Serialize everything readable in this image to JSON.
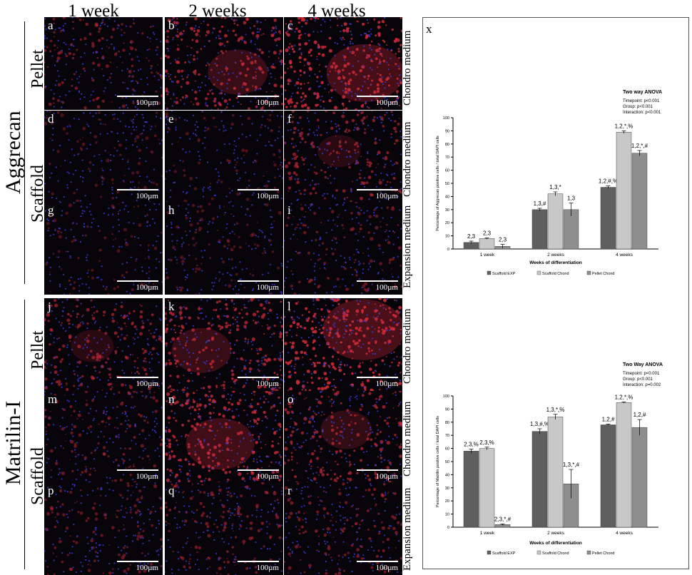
{
  "figure": {
    "column_headers": [
      "1 week",
      "2 weeks",
      "4 weeks"
    ],
    "section_labels": {
      "aggrecan": "Aggrecan",
      "matrilin": "Matrilin-I"
    },
    "row_labels": {
      "pellet_top": "Pellet",
      "scaffold_top": "Scaffold",
      "pellet_bottom": "Pellet",
      "scaffold_bottom": "Scaffold"
    },
    "medium_labels": [
      "Chondro medium",
      "Chondro medium",
      "Expansion medium",
      "Chondro medium",
      "Chondro medium",
      "Expansion medium"
    ],
    "panel_letters": [
      "a",
      "b",
      "c",
      "d",
      "e",
      "f",
      "g",
      "h",
      "i",
      "j",
      "k",
      "l",
      "m",
      "n",
      "o",
      "p",
      "q",
      "r"
    ],
    "scale_bar": "100µm",
    "chart_panel_letter": "x",
    "colors": {
      "scaffold_exp": "#5f5f5f",
      "scaffold_chond": "#c8c8c8",
      "pellet_chond": "#8e8e8e",
      "cell_red": "#d22a3a",
      "cell_blue": "#3a3ad8"
    }
  },
  "chart_data": [
    {
      "type": "bar",
      "categories": [
        "1 week",
        "2 weeks",
        "4 weeks"
      ],
      "xlabel": "Weeks of differentiation",
      "ylabel": "Percentage of Aggrecan positive cells / total DAPI cells",
      "ylim": [
        0,
        100
      ],
      "yticks": [
        0,
        10,
        20,
        30,
        40,
        50,
        60,
        70,
        80,
        90,
        100
      ],
      "series": [
        {
          "name": "Scaffold EXP",
          "values": [
            5,
            30,
            47
          ],
          "errors": [
            1,
            1,
            1
          ],
          "labels": [
            "2,3",
            "1,3,#",
            "1,2,#,%"
          ]
        },
        {
          "name": "Scaffold Chond",
          "values": [
            8,
            42,
            89
          ],
          "errors": [
            0.5,
            1.5,
            1
          ],
          "labels": [
            "2,3",
            "1,3,*",
            "1,2,*,%"
          ]
        },
        {
          "name": "Pellet Chond",
          "values": [
            2,
            30,
            73
          ],
          "errors": [
            1.5,
            5,
            2
          ],
          "labels": [
            "2,3",
            "1,3",
            "1,2,*,#"
          ]
        }
      ],
      "anova": {
        "title": "Two way ANOVA",
        "lines": [
          "Timepoint: p<0.001",
          "Group:      p<0.001",
          "Interaction: p<0.001"
        ]
      }
    },
    {
      "type": "bar",
      "categories": [
        "1 week",
        "2 weeks",
        "4 weeks"
      ],
      "xlabel": "Weeks of differentiation",
      "ylabel": "Percentage of Matrilin positive cells / total DAPI cells",
      "ylim": [
        0,
        100
      ],
      "yticks": [
        0,
        10,
        20,
        30,
        40,
        50,
        60,
        70,
        80,
        90,
        100
      ],
      "series": [
        {
          "name": "Scaffold EXP",
          "values": [
            58,
            73,
            78
          ],
          "errors": [
            1.5,
            2,
            0.5
          ],
          "labels": [
            "2,3,%",
            "1,3,#,%",
            "1,2,#"
          ]
        },
        {
          "name": "Scaffold Chond",
          "values": [
            60,
            84,
            95
          ],
          "errors": [
            1,
            2,
            0.5
          ],
          "labels": [
            "2,3,%",
            "1,3,*,%",
            "1,2,*,%"
          ]
        },
        {
          "name": "Pellet Chond",
          "values": [
            2,
            33,
            76
          ],
          "errors": [
            0.5,
            11,
            6
          ],
          "labels": [
            "2,3,*,#",
            "1,3,*,#",
            "1,2,#"
          ]
        }
      ],
      "anova": {
        "title": "Two Way ANOVA",
        "lines": [
          "Timepoint: p<0.001",
          "Group:      p<0.001",
          "Interaction: p=0.002"
        ]
      }
    }
  ]
}
